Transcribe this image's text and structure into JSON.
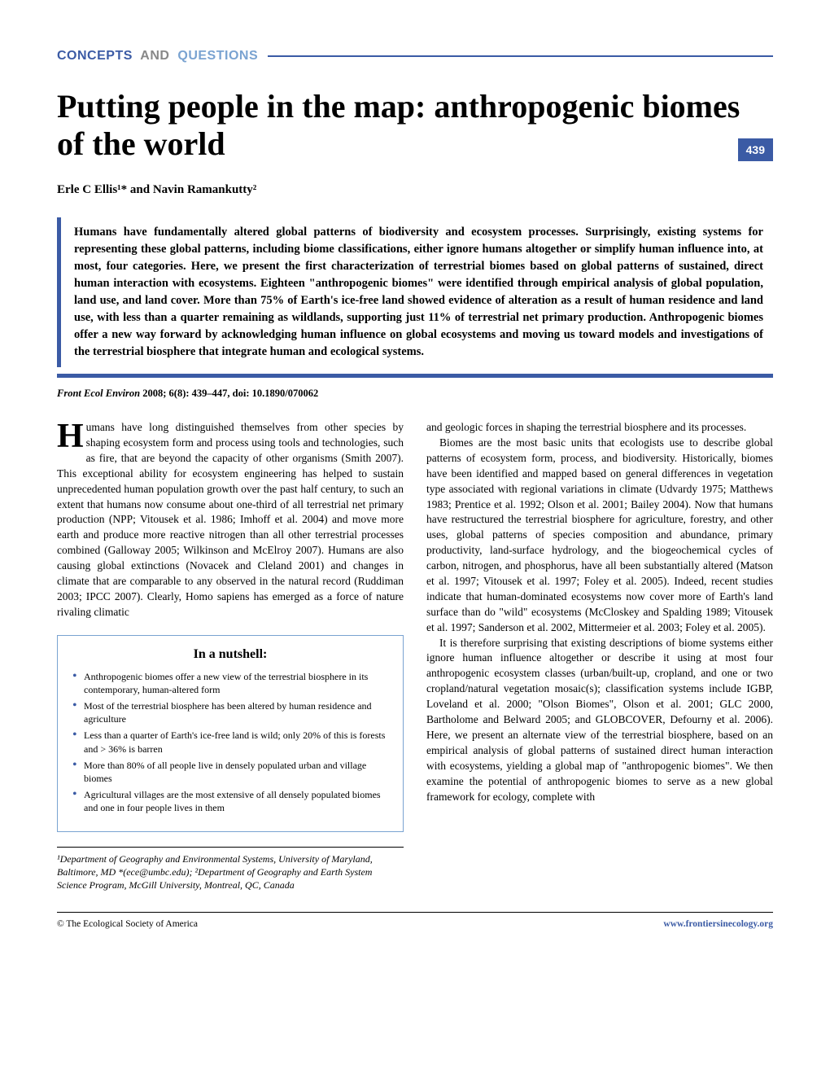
{
  "header": {
    "section_concepts": "CONCEPTS",
    "section_and": " AND ",
    "section_questions": "QUESTIONS",
    "page_number": "439"
  },
  "title": "Putting people in the map: anthropogenic biomes of the world",
  "authors": "Erle C Ellis¹* and Navin Ramankutty²",
  "abstract": "Humans have fundamentally altered global patterns of biodiversity and ecosystem processes. Surprisingly, existing systems for representing these global patterns, including biome classifications, either ignore humans altogether or simplify human influence into, at most, four categories. Here, we present the first characterization of terrestrial biomes based on global patterns of sustained, direct human interaction with ecosystems. Eighteen \"anthropogenic biomes\" were identified through empirical analysis of global population, land use, and land cover. More than 75% of Earth's ice-free land showed evidence of alteration as a result of human residence and land use, with less than a quarter remaining as wildlands, supporting just 11% of terrestrial net primary production. Anthropogenic biomes offer a new way forward by acknowledging human influence on global ecosystems and moving us toward models and investigations of the terrestrial biosphere that integrate human and ecological systems.",
  "citation": {
    "journal": "Front Ecol Environ",
    "details": " 2008; 6(8): 439–447, doi: 10.1890/070062"
  },
  "body": {
    "left_p1_dropcap": "H",
    "left_p1": "umans have long distinguished themselves from other species by shaping ecosystem form and process using tools and technologies, such as fire, that are beyond the capacity of other organisms (Smith 2007). This exceptional ability for ecosystem engineering has helped to sustain unprecedented human population growth over the past half century, to such an extent that humans now consume about one-third of all terrestrial net primary production (NPP; Vitousek et al. 1986; Imhoff et al. 2004) and move more earth and produce more reactive nitrogen than all other terrestrial processes combined (Galloway 2005; Wilkinson and McElroy 2007). Humans are also causing global extinctions (Novacek and Cleland 2001) and changes in climate that are comparable to any observed in the natural record (Ruddiman 2003; IPCC 2007). Clearly, Homo sapiens has emerged as a force of nature rivaling climatic",
    "right_p1": "and geologic forces in shaping the terrestrial biosphere and its processes.",
    "right_p2": "Biomes are the most basic units that ecologists use to describe global patterns of ecosystem form, process, and biodiversity. Historically, biomes have been identified and mapped based on general differences in vegetation type associated with regional variations in climate (Udvardy 1975; Matthews 1983; Prentice et al. 1992; Olson et al. 2001; Bailey 2004). Now that humans have restructured the terrestrial biosphere for agriculture, forestry, and other uses, global patterns of species composition and abundance, primary productivity, land-surface hydrology, and the biogeochemical cycles of carbon, nitrogen, and phosphorus, have all been substantially altered (Matson et al. 1997; Vitousek et al. 1997; Foley et al. 2005). Indeed, recent studies indicate that human-dominated ecosystems now cover more of Earth's land surface than do \"wild\" ecosystems (McCloskey and Spalding 1989; Vitousek et al. 1997; Sanderson et al. 2002, Mittermeier et al. 2003; Foley et al. 2005).",
    "right_p3": "It is therefore surprising that existing descriptions of biome systems either ignore human influence altogether or describe it using at most four anthropogenic ecosystem classes (urban/built-up, cropland, and one or two cropland/natural vegetation mosaic(s); classification systems include IGBP, Loveland et al. 2000; \"Olson Biomes\", Olson et al. 2001; GLC 2000, Bartholome and Belward 2005; and GLOBCOVER, Defourny et al. 2006). Here, we present an alternate view of the terrestrial biosphere, based on an empirical analysis of global patterns of sustained direct human interaction with ecosystems, yielding a global map of \"anthropogenic biomes\". We then examine the potential of anthropogenic biomes to serve as a new global framework for ecology, complete with"
  },
  "nutshell": {
    "title": "In a nutshell:",
    "items": [
      "Anthropogenic biomes offer a new view of the terrestrial biosphere in its contemporary, human-altered form",
      "Most of the terrestrial biosphere has been altered by human residence and agriculture",
      "Less than a quarter of Earth's ice-free land is wild; only 20% of this is forests and > 36% is barren",
      "More than 80% of all people live in densely populated urban and village biomes",
      "Agricultural villages are the most extensive of all densely populated biomes and one in four people lives in them"
    ]
  },
  "affiliations": "¹Department of Geography and Environmental Systems, University of Maryland, Baltimore, MD *(ece@umbc.edu); ²Department of Geography and Earth System Science Program, McGill University, Montreal, QC, Canada",
  "footer": {
    "left": "© The Ecological Society of America",
    "right": "www.frontiersinecology.org"
  },
  "colors": {
    "primary_blue": "#3b5ba5",
    "light_blue": "#7aa3d1",
    "gray": "#888888",
    "text": "#000000",
    "background": "#ffffff"
  }
}
